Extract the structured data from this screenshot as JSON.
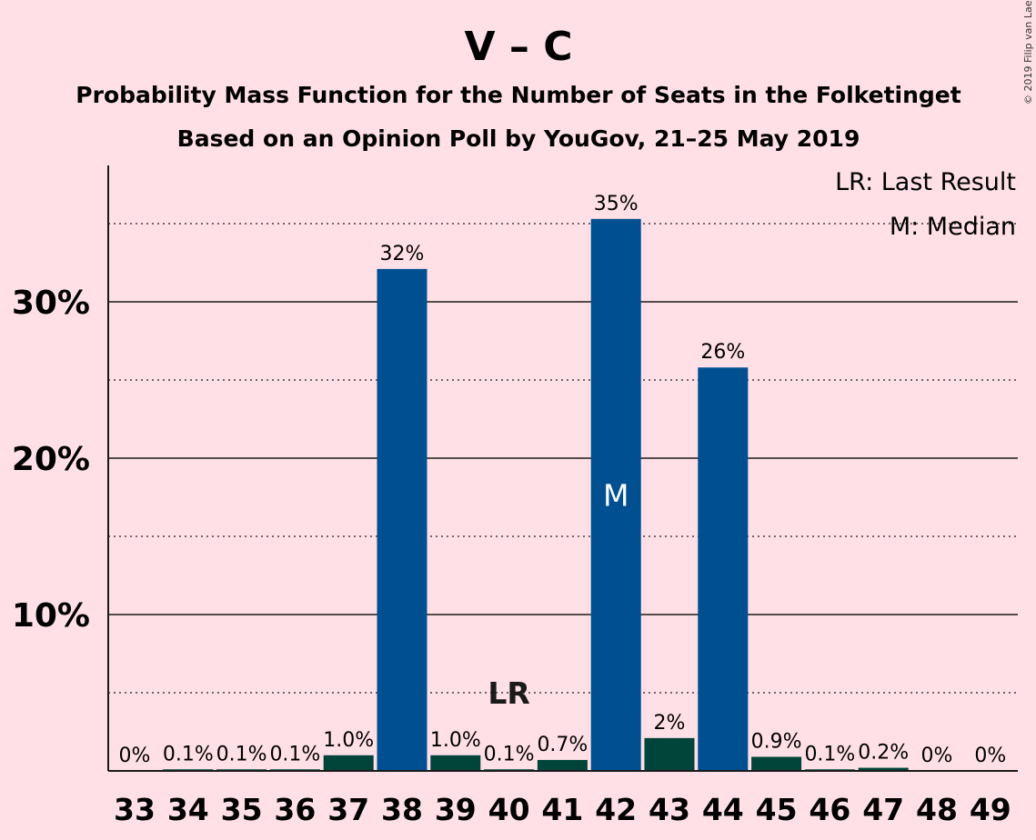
{
  "chart_data": {
    "type": "bar",
    "title": "V – C",
    "subtitle_lines": [
      "Probability Mass Function for the Number of Seats in the Folketinget",
      "Based on an Opinion Poll by YouGov, 21–25 May 2019"
    ],
    "copyright": "© 2019 Filip van Laenen",
    "categories": [
      "33",
      "34",
      "35",
      "36",
      "37",
      "38",
      "39",
      "40",
      "41",
      "42",
      "43",
      "44",
      "45",
      "46",
      "47",
      "48",
      "49"
    ],
    "values": [
      0,
      0.1,
      0.1,
      0.1,
      1.0,
      32.1,
      1.0,
      0.1,
      0.7,
      35.3,
      2.1,
      25.8,
      0.9,
      0.1,
      0.2,
      0,
      0
    ],
    "value_labels": [
      "0%",
      "0.1%",
      "0.1%",
      "0.1%",
      "1.0%",
      "32%",
      "1.0%",
      "0.1%",
      "0.7%",
      "35%",
      "2%",
      "26%",
      "0.9%",
      "0.1%",
      "0.2%",
      "0%",
      "0%"
    ],
    "y_ticks": [
      10,
      20,
      30
    ],
    "y_tick_labels": [
      "10%",
      "20%",
      "30%"
    ],
    "ylim": [
      0,
      38.5
    ],
    "grid": "solid at every 10%, dotted at every 5%",
    "last_result": {
      "category": "40",
      "label": "LR"
    },
    "median": {
      "category": "42",
      "label": "M"
    },
    "legend": {
      "position": "top-right",
      "items": [
        "LR: Last Result",
        "M: Median"
      ]
    },
    "colors": {
      "background": "#ffe0e6",
      "major_bar": "#005091",
      "minor_bar": "#00443a",
      "text": "#1a1a1a"
    }
  }
}
